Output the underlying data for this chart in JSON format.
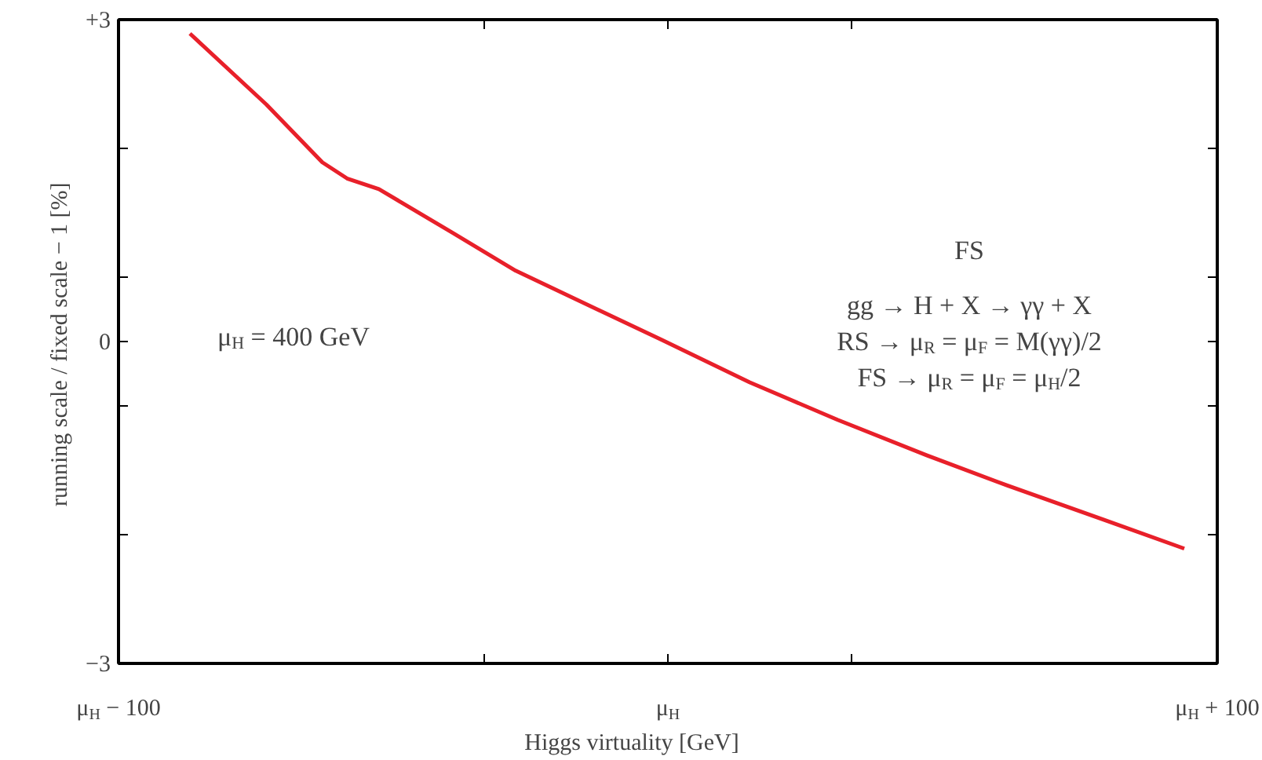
{
  "chart_data": {
    "type": "line",
    "xlabel": "Higgs virtuality [GeV]",
    "ylabel": "running scale / fixed scale − 1  [%]",
    "x": [
      -87,
      -73.1,
      -62.9,
      -58.4,
      -55.5,
      -52.6,
      -39.4,
      -27.7,
      -1.3,
      14.9,
      30.9,
      47.1,
      61.7,
      79.3,
      94
    ],
    "series": [
      {
        "color": "#e8202a",
        "values": [
          2.87,
          2.21,
          1.67,
          1.52,
          1.47,
          1.42,
          1.02,
          0.66,
          0.02,
          -0.38,
          -0.73,
          -1.06,
          -1.34,
          -1.66,
          -1.93
        ]
      }
    ],
    "xlim": [
      -100,
      100
    ],
    "xticks": [
      {
        "value": -100,
        "label": "μ$_{H}$ − 100"
      },
      {
        "value": -33.3,
        "label": null
      },
      {
        "value": 0,
        "label": "μ$_{H}$"
      },
      {
        "value": 33.3,
        "label": null
      },
      {
        "value": 100,
        "label": "μ$_{H}$ + 100"
      }
    ],
    "ylim": [
      -3,
      3
    ],
    "yticks": [
      {
        "value": -3,
        "label": "−3"
      },
      {
        "value": -1.8,
        "label": null
      },
      {
        "value": -0.6,
        "label": null
      },
      {
        "value": 0,
        "label": "0"
      },
      {
        "value": 0.6,
        "label": null
      },
      {
        "value": 1.8,
        "label": null
      },
      {
        "value": 3,
        "label": "+3"
      }
    ],
    "annotations": [
      "μ$_{H}$ = 400 GeV",
      "FS",
      "gg → H + X → γγ + X",
      "RS → μ$_{R}$ = μ$_{F}$ = M(γγ)/2",
      "FS → μ$_{R}$ = μ$_{F}$ = μ$_{H}$/2"
    ],
    "grid": false,
    "marker": "none",
    "line_style": "solid"
  }
}
